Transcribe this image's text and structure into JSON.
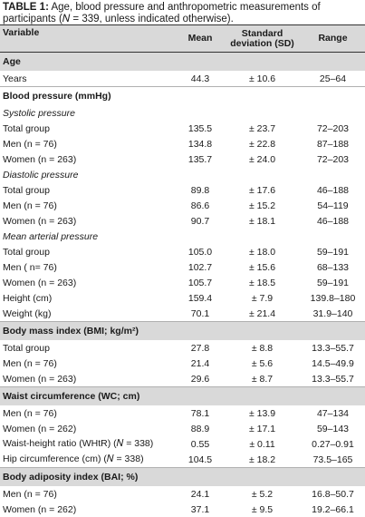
{
  "caption": {
    "label": "TABLE 1:",
    "text": " Age, blood pressure and anthropometric measurements of participants (𝑁 = 339, unless indicated otherwise)."
  },
  "headers": {
    "variable": "Variable",
    "mean": "Mean",
    "sd_line1": "Standard",
    "sd_line2": "deviation (SD)",
    "range": "Range"
  },
  "rows": [
    {
      "kind": "section",
      "label": "Age"
    },
    {
      "kind": "data",
      "label": "Years",
      "mean": "44.3",
      "sd": "± 10.6",
      "range": "25–64"
    },
    {
      "kind": "subhead",
      "label": "Blood pressure (mmHg)"
    },
    {
      "kind": "sub",
      "label": "Systolic pressure"
    },
    {
      "kind": "data",
      "label": "Total group",
      "mean": "135.5",
      "sd": "± 23.7",
      "range": "72–203"
    },
    {
      "kind": "data",
      "label": "Men (n = 76)",
      "mean": "134.8",
      "sd": "± 22.8",
      "range": "87–188"
    },
    {
      "kind": "data",
      "label": "Women (n = 263)",
      "mean": "135.7",
      "sd": "± 24.0",
      "range": "72–203"
    },
    {
      "kind": "sub",
      "label": "Diastolic pressure"
    },
    {
      "kind": "data",
      "label": "Total group",
      "mean": "89.8",
      "sd": "± 17.6",
      "range": "46–188"
    },
    {
      "kind": "data",
      "label": "Men (n = 76)",
      "mean": "86.6",
      "sd": "± 15.2",
      "range": "54–119"
    },
    {
      "kind": "data",
      "label": "Women (n = 263)",
      "mean": "90.7",
      "sd": "± 18.1",
      "range": "46–188"
    },
    {
      "kind": "sub",
      "label": "Mean arterial pressure"
    },
    {
      "kind": "data",
      "label": "Total group",
      "mean": "105.0",
      "sd": "± 18.0",
      "range": "59–191"
    },
    {
      "kind": "data",
      "label": "Men ( n= 76)",
      "mean": "102.7",
      "sd": "± 15.6",
      "range": "68–133"
    },
    {
      "kind": "data",
      "label": "Women (n = 263)",
      "mean": "105.7",
      "sd": "± 18.5",
      "range": "59–191"
    },
    {
      "kind": "data",
      "label": "Height (cm)",
      "mean": "159.4",
      "sd": "± 7.9",
      "range": "139.8–180"
    },
    {
      "kind": "data",
      "label": "Weight (kg)",
      "mean": "70.1",
      "sd": "± 21.4",
      "range": "31.9–140"
    },
    {
      "kind": "section",
      "label": "Body mass index (BMI; kg/m²)"
    },
    {
      "kind": "data",
      "label": "Total group",
      "mean": "27.8",
      "sd": "± 8.8",
      "range": "13.3–55.7"
    },
    {
      "kind": "data",
      "label": "Men (n = 76)",
      "mean": "21.4",
      "sd": "± 5.6",
      "range": "14.5–49.9"
    },
    {
      "kind": "data",
      "label": "Women (n = 263)",
      "mean": "29.6",
      "sd": "± 8.7",
      "range": "13.3–55.7"
    },
    {
      "kind": "section",
      "label": "Waist circumference (WC; cm)"
    },
    {
      "kind": "data",
      "label": "Men (n = 76)",
      "mean": "78.1",
      "sd": "± 13.9",
      "range": "47–134"
    },
    {
      "kind": "data",
      "label": "Women (n = 262)",
      "mean": "88.9",
      "sd": "± 17.1",
      "range": "59–143"
    },
    {
      "kind": "data",
      "label": "Waist-height ratio (WHtR) (𝑁 = 338)",
      "mean": "0.55",
      "sd": "± 0.11",
      "range": "0.27–0.91"
    },
    {
      "kind": "data",
      "label": "Hip circumference (cm) (𝑁 = 338)",
      "mean": "104.5",
      "sd": "± 18.2",
      "range": "73.5–165"
    },
    {
      "kind": "section",
      "label": "Body adiposity index (BAI; %)"
    },
    {
      "kind": "data",
      "label": "Men (n = 76)",
      "mean": "24.1",
      "sd": "± 5.2",
      "range": "16.8–50.7"
    },
    {
      "kind": "data",
      "label": "Women (n = 262)",
      "mean": "37.1",
      "sd": "± 9.5",
      "range": "19.2–66.1"
    }
  ]
}
